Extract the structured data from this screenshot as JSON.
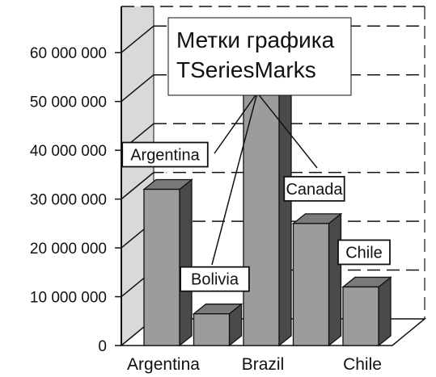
{
  "chart_data": {
    "type": "bar",
    "title": "",
    "xlabel": "",
    "ylabel": "",
    "categories": [
      "Argentina",
      "Bolivia",
      "Brazil",
      "Canada",
      "Chile"
    ],
    "values": [
      32000000,
      6500000,
      57000000,
      25000000,
      12000000
    ],
    "ylim": [
      0,
      65000000
    ],
    "y_ticks": [
      0,
      10000000,
      20000000,
      30000000,
      40000000,
      50000000,
      60000000
    ],
    "y_tick_labels": [
      "0",
      "10 000 000",
      "20 000 000",
      "30 000 000",
      "40 000 000",
      "50 000 000",
      "60 000 000"
    ],
    "x_tick_labels": [
      "Argentina",
      "Brazil",
      "Chile"
    ],
    "mark_labels": [
      "Argentina",
      "Bolivia",
      "",
      "Canada",
      "Chile"
    ],
    "grid": true,
    "style": "3d",
    "annotation": {
      "lines": [
        "Метки графика",
        "TSeriesMarks"
      ]
    },
    "colors": {
      "bar_front": "#9c9c9c",
      "bar_side": "#4a4a4a",
      "bar_top": "#7a7a7a",
      "outline": "#111111",
      "wall": "#d9d9d9"
    }
  }
}
